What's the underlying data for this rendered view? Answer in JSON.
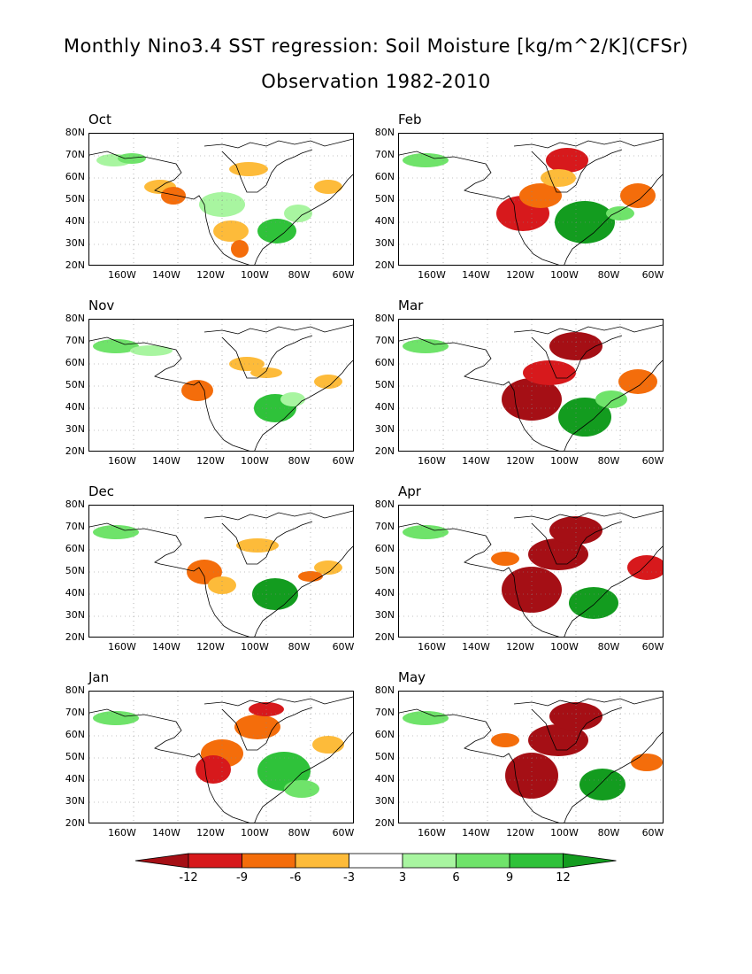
{
  "title_line1": "Monthly Nino3.4 SST regression: Soil Moisture [kg/m^2/K](CFSr)",
  "title_line2": "Observation 1982-2010",
  "lat_labels": [
    "80N",
    "70N",
    "60N",
    "50N",
    "40N",
    "30N",
    "20N"
  ],
  "lon_labels": [
    "160W",
    "140W",
    "120W",
    "100W",
    "80W",
    "60W"
  ],
  "panels": [
    {
      "id": "oct",
      "label": "Oct"
    },
    {
      "id": "feb",
      "label": "Feb"
    },
    {
      "id": "nov",
      "label": "Nov"
    },
    {
      "id": "mar",
      "label": "Mar"
    },
    {
      "id": "dec",
      "label": "Dec"
    },
    {
      "id": "apr",
      "label": "Apr"
    },
    {
      "id": "jan",
      "label": "Jan"
    },
    {
      "id": "may",
      "label": "May"
    }
  ],
  "colorbar": {
    "labels": [
      "-12",
      "-9",
      "-6",
      "-3",
      "3",
      "6",
      "9",
      "12"
    ],
    "colors": [
      "#a50f15",
      "#d7191c",
      "#f46d0b",
      "#fdbb3a",
      "#ffffff",
      "#a8f5a0",
      "#6fe36a",
      "#2fc23a",
      "#139c1f"
    ]
  },
  "palette": {
    "dry3": "#a50f15",
    "dry2": "#d7191c",
    "dry1": "#f46d0b",
    "dry0": "#fdbb3a",
    "wet0": "#a8f5a0",
    "wet1": "#6fe36a",
    "wet2": "#2fc23a",
    "wet3": "#139c1f"
  }
}
